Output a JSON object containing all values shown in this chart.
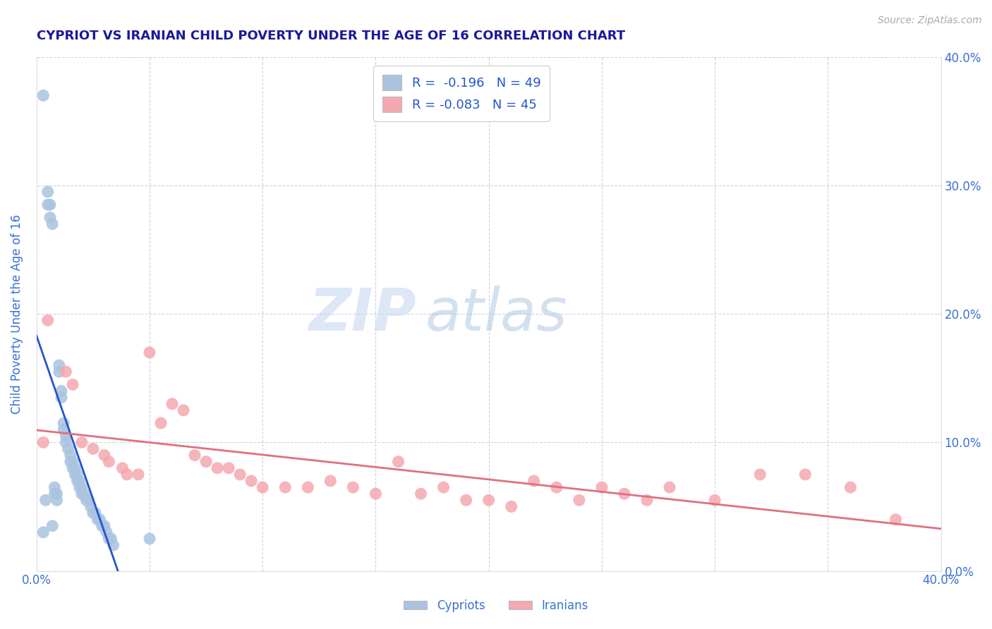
{
  "title": "CYPRIOT VS IRANIAN CHILD POVERTY UNDER THE AGE OF 16 CORRELATION CHART",
  "source": "Source: ZipAtlas.com",
  "ylabel": "Child Poverty Under the Age of 16",
  "ytick_values": [
    0.0,
    0.1,
    0.2,
    0.3,
    0.4
  ],
  "xlim": [
    0.0,
    0.4
  ],
  "ylim": [
    0.0,
    0.4
  ],
  "legend_cypriot_R": "-0.196",
  "legend_cypriot_N": "49",
  "legend_iranian_R": "-0.083",
  "legend_iranian_N": "45",
  "cypriot_color": "#aac4e0",
  "iranian_color": "#f4a8b0",
  "trendline_cypriot_color": "#2255cc",
  "trendline_iranian_color": "#e07080",
  "watermark_ZIP": "ZIP",
  "watermark_atlas": "atlas",
  "background_color": "#ffffff",
  "grid_color": "#c8d4e8",
  "title_color": "#1a1a9a",
  "axis_label_color": "#3a6fd8",
  "cypriot_x": [
    0.003,
    0.003,
    0.004,
    0.005,
    0.005,
    0.006,
    0.006,
    0.007,
    0.007,
    0.008,
    0.008,
    0.009,
    0.009,
    0.01,
    0.01,
    0.011,
    0.011,
    0.012,
    0.012,
    0.013,
    0.013,
    0.014,
    0.015,
    0.015,
    0.016,
    0.016,
    0.017,
    0.017,
    0.018,
    0.018,
    0.019,
    0.019,
    0.02,
    0.02,
    0.021,
    0.022,
    0.023,
    0.024,
    0.025,
    0.026,
    0.027,
    0.028,
    0.029,
    0.03,
    0.031,
    0.032,
    0.033,
    0.034,
    0.05
  ],
  "cypriot_y": [
    0.37,
    0.03,
    0.055,
    0.295,
    0.285,
    0.285,
    0.275,
    0.27,
    0.035,
    0.065,
    0.06,
    0.06,
    0.055,
    0.16,
    0.155,
    0.14,
    0.135,
    0.115,
    0.11,
    0.105,
    0.1,
    0.095,
    0.09,
    0.085,
    0.085,
    0.08,
    0.08,
    0.075,
    0.075,
    0.07,
    0.07,
    0.065,
    0.065,
    0.06,
    0.06,
    0.055,
    0.055,
    0.05,
    0.045,
    0.045,
    0.04,
    0.04,
    0.035,
    0.035,
    0.03,
    0.025,
    0.025,
    0.02,
    0.025
  ],
  "iranian_x": [
    0.003,
    0.005,
    0.013,
    0.016,
    0.02,
    0.025,
    0.03,
    0.032,
    0.038,
    0.04,
    0.045,
    0.05,
    0.055,
    0.06,
    0.065,
    0.07,
    0.075,
    0.08,
    0.085,
    0.09,
    0.095,
    0.1,
    0.11,
    0.12,
    0.13,
    0.14,
    0.15,
    0.16,
    0.17,
    0.18,
    0.19,
    0.2,
    0.21,
    0.22,
    0.23,
    0.24,
    0.25,
    0.26,
    0.27,
    0.28,
    0.3,
    0.32,
    0.34,
    0.36,
    0.38
  ],
  "iranian_y": [
    0.1,
    0.195,
    0.155,
    0.145,
    0.1,
    0.095,
    0.09,
    0.085,
    0.08,
    0.075,
    0.075,
    0.17,
    0.115,
    0.13,
    0.125,
    0.09,
    0.085,
    0.08,
    0.08,
    0.075,
    0.07,
    0.065,
    0.065,
    0.065,
    0.07,
    0.065,
    0.06,
    0.085,
    0.06,
    0.065,
    0.055,
    0.055,
    0.05,
    0.07,
    0.065,
    0.055,
    0.065,
    0.06,
    0.055,
    0.065,
    0.055,
    0.075,
    0.075,
    0.065,
    0.04
  ]
}
